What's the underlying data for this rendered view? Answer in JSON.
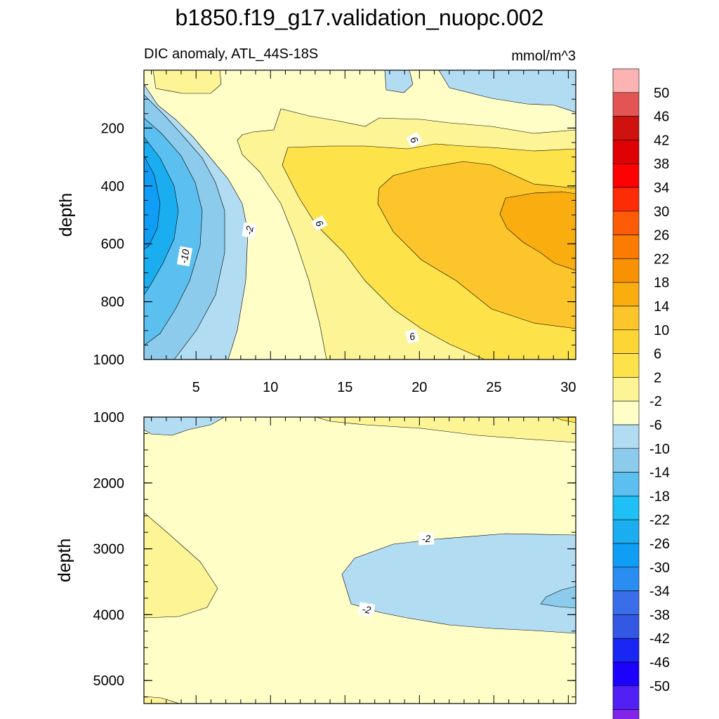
{
  "figure": {
    "title": "b1850.f19_g17.validation_nuopc.002",
    "subtitle_left": "DIC anomaly, ATL_44S-18S",
    "subtitle_right": "mmol/m^3"
  },
  "colors": {
    "fills": {
      "-6": "#b2dcf2",
      "-10": "#8ccbec",
      "-14": "#5bc0ef",
      "-18": "#1aaef1",
      "-22": "#0f9df5",
      "-2": "#fefec6",
      "2": "#fdf496",
      "6": "#fde24a",
      "10": "#fcc52b",
      "14": "#faad0e"
    },
    "colorbar": [
      "#8125e8",
      "#5220f4",
      "#1c02fd",
      "#1a26f4",
      "#3358e3",
      "#3a6ee9",
      "#2a8df2",
      "#0f9df5",
      "#1aaef1",
      "#1ec0f5",
      "#5bc0ef",
      "#8ccbec",
      "#b2dcf2",
      "#fefec6",
      "#fdf496",
      "#fde24a",
      "#fcd634",
      "#fcc52b",
      "#faad0e",
      "#f99203",
      "#fb7c00",
      "#fd5b06",
      "#fd2c06",
      "#fe0203",
      "#e00103",
      "#d0120f",
      "#e35552",
      "#fdb3b2"
    ]
  },
  "colorbar_labels": [
    "50",
    "46",
    "42",
    "38",
    "34",
    "30",
    "26",
    "22",
    "18",
    "14",
    "10",
    "6",
    "2",
    "-2",
    "-6",
    "-10",
    "-14",
    "-18",
    "-22",
    "-26",
    "-30",
    "-34",
    "-38",
    "-42",
    "-46",
    "-50"
  ],
  "chart_data": [
    {
      "type": "contour",
      "panel": "upper",
      "ylabel": "depth",
      "xlim": [
        1.5,
        30.5
      ],
      "ylim": [
        1000,
        0
      ],
      "x_ticks": [
        "5",
        "10",
        "15",
        "20",
        "25",
        "30"
      ],
      "y_ticks": [
        "200",
        "400",
        "600",
        "800",
        "1000"
      ],
      "contour_labels": [
        "-10",
        "-2",
        "6",
        "6",
        "6"
      ]
    },
    {
      "type": "contour",
      "panel": "lower",
      "ylabel": "depth",
      "xlim": [
        1.5,
        30.5
      ],
      "ylim": [
        5350,
        1000
      ],
      "y_ticks": [
        "1000",
        "2000",
        "3000",
        "4000",
        "5000"
      ],
      "contour_labels": [
        "-2",
        "-2"
      ]
    }
  ]
}
